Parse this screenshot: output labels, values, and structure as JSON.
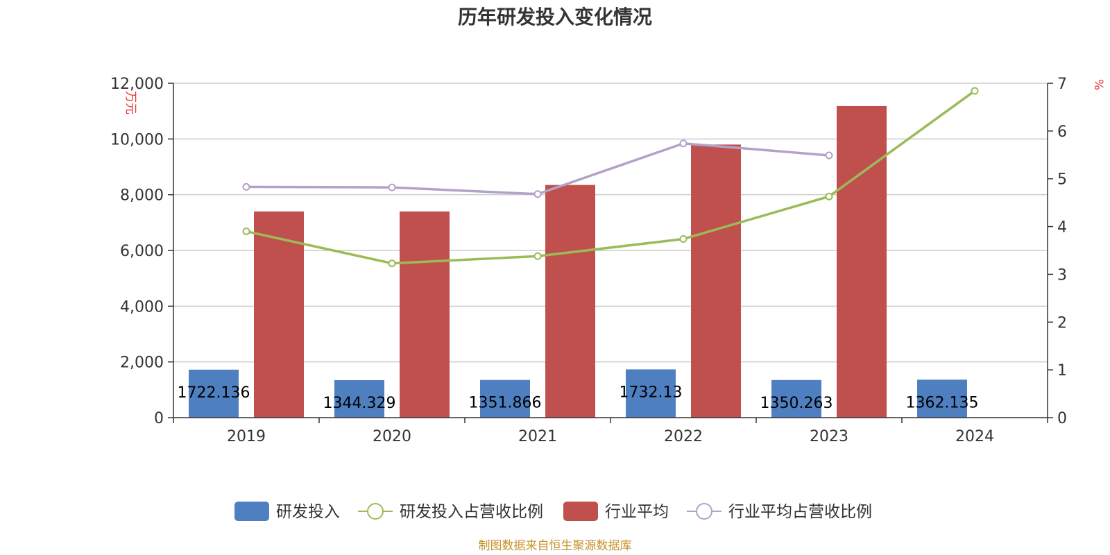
{
  "colors": {
    "rd": "#4e7fc1",
    "rd_ratio": "#9bbb59",
    "ind_avg": "#c0504d",
    "ind_ratio": "#b3a2c7",
    "unit": "#e8312f",
    "source": "#c8912b",
    "grid": "#cccccc",
    "axis": "#333333"
  },
  "chart_data": {
    "type": "bar",
    "title": "历年研发投入变化情况",
    "categories": [
      "2019",
      "2020",
      "2021",
      "2022",
      "2023",
      "2024"
    ],
    "y_left": {
      "label": "万元",
      "min": 0,
      "max": 12000,
      "ticks": [
        0,
        2000,
        4000,
        6000,
        8000,
        10000,
        12000
      ],
      "tick_labels": [
        "0",
        "2,000",
        "4,000",
        "6,000",
        "8,000",
        "10,000",
        "12,000"
      ]
    },
    "y_right": {
      "label": "%",
      "min": 0,
      "max": 7,
      "ticks": [
        0,
        1,
        2,
        3,
        4,
        5,
        6,
        7
      ],
      "tick_labels": [
        "0",
        "1",
        "2",
        "3",
        "4",
        "5",
        "6",
        "7"
      ]
    },
    "series": [
      {
        "name": "研发投入",
        "type": "bar",
        "axis": "left",
        "values": [
          1722.136,
          1344.329,
          1351.866,
          1732.13,
          1350.263,
          1362.135
        ],
        "labels": [
          "1722.136",
          "1344.329",
          "1351.866",
          "1732.13",
          "1350.263",
          "1362.135"
        ]
      },
      {
        "name": "研发投入占营收比例",
        "type": "line",
        "axis": "right",
        "values": [
          3.9,
          3.23,
          3.38,
          3.74,
          4.63,
          6.84
        ]
      },
      {
        "name": "行业平均",
        "type": "bar",
        "axis": "left",
        "values": [
          7400,
          7400,
          8350,
          9800,
          11180,
          null
        ]
      },
      {
        "name": "行业平均占营收比例",
        "type": "line",
        "axis": "right",
        "values": [
          4.83,
          4.82,
          4.68,
          5.74,
          5.49,
          null
        ]
      }
    ],
    "grid": true,
    "legend_position": "bottom",
    "source": "制图数据来自恒生聚源数据库"
  }
}
